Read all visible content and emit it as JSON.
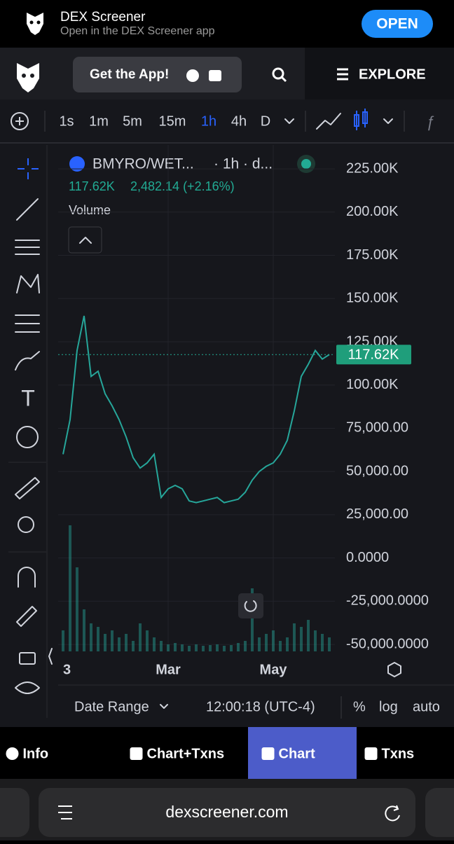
{
  "banner": {
    "title": "DEX Screener",
    "subtitle": "Open in the DEX Screener app",
    "button": "OPEN"
  },
  "nav": {
    "get_app": "Get the App!",
    "explore": "EXPLORE"
  },
  "toolbar": {
    "intervals": [
      "1s",
      "1m",
      "5m",
      "15m",
      "1h",
      "4h",
      "D"
    ],
    "active": 4
  },
  "chart_data": {
    "type": "line",
    "symbol": "BMYRO/WET...",
    "interval": "· 1h · d...",
    "price": "117.62K",
    "change": "2,482.14 (+2.16%)",
    "categories": [
      "3",
      null,
      null,
      null,
      null,
      null,
      null,
      null,
      null,
      null,
      null,
      null,
      null,
      null,
      null,
      "Mar",
      null,
      null,
      null,
      null,
      null,
      null,
      null,
      null,
      null,
      null,
      null,
      null,
      null,
      null,
      "May",
      null,
      null,
      null,
      null,
      null,
      null,
      null,
      null
    ],
    "series": [
      {
        "color": "#26a69a",
        "values": [
          60000,
          80000,
          120000,
          140000,
          105000,
          108000,
          95000,
          88000,
          80000,
          70000,
          58000,
          52000,
          55000,
          60000,
          35000,
          40000,
          42000,
          40000,
          33000,
          32000,
          33000,
          34000,
          35000,
          32000,
          33000,
          34000,
          38000,
          45000,
          50000,
          53000,
          55000,
          60000,
          68000,
          85000,
          105000,
          112000,
          120000,
          115000,
          117620
        ]
      }
    ],
    "volume": {
      "name": "Volume",
      "color": "#26a69a",
      "values": [
        30,
        180,
        120,
        60,
        40,
        35,
        25,
        30,
        20,
        25,
        15,
        40,
        30,
        20,
        15,
        10,
        12,
        10,
        8,
        10,
        8,
        9,
        10,
        8,
        9,
        12,
        15,
        90,
        20,
        25,
        30,
        15,
        20,
        40,
        35,
        45,
        30,
        25,
        20
      ]
    },
    "ylim": [
      -54000,
      238800
    ],
    "yticks": [
      {
        "value": 225000,
        "label": "225.00K"
      },
      {
        "value": 200000,
        "label": "200.00K"
      },
      {
        "value": 175000,
        "label": "175.00K"
      },
      {
        "value": 150000,
        "label": "150.00K"
      },
      {
        "value": 125000,
        "label": "125.00K"
      },
      {
        "value": 100000,
        "label": "100.00K"
      },
      {
        "value": 75000,
        "label": "75,000.00"
      },
      {
        "value": 50000,
        "label": "50,000.00"
      },
      {
        "value": 25000,
        "label": "25,000.00"
      },
      {
        "value": 0,
        "label": "0.0000"
      },
      {
        "value": -25000,
        "label": "-25,000.0000"
      },
      {
        "value": -50000,
        "label": "-50,000.0000"
      }
    ],
    "last_price": {
      "value": 117620,
      "label": "117.62K"
    },
    "grid": true
  },
  "chart_footer": {
    "date_range": "Date Range",
    "time": "12:00:18 (UTC-4)",
    "percent": "%",
    "log": "log",
    "auto": "auto"
  },
  "tabs": {
    "items": [
      "Info",
      "Chart+Txns",
      "Chart",
      "Txns"
    ],
    "active": 2
  },
  "url": "dexscreener.com"
}
